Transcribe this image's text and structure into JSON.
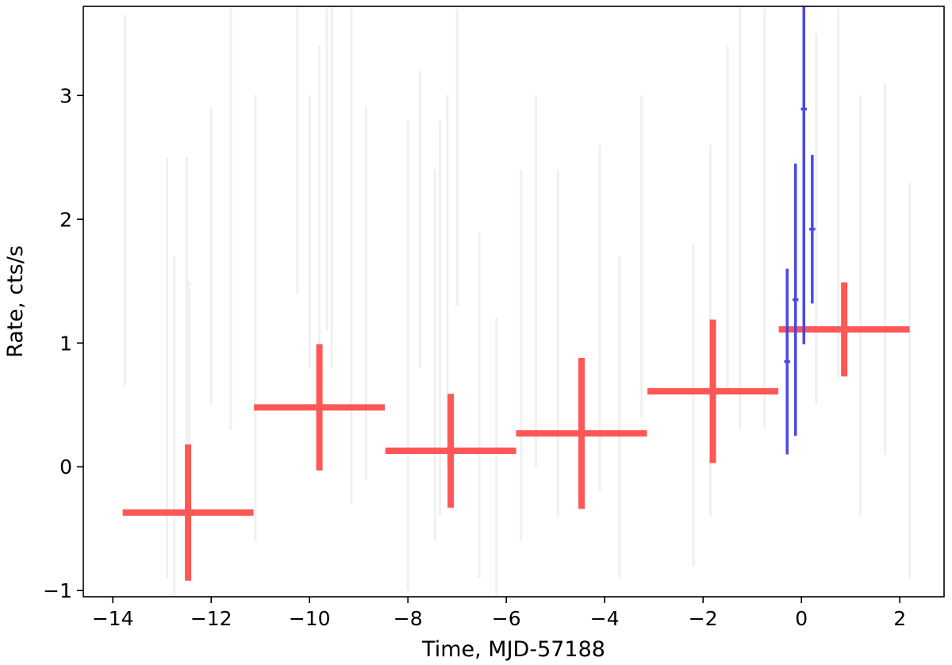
{
  "chart_data": {
    "type": "scatter",
    "xlabel": "Time, MJD-57188",
    "ylabel": "Rate, cts/s",
    "xlim": [
      -14.6,
      2.9
    ],
    "ylim": [
      -1.05,
      3.72
    ],
    "x_ticks": [
      -14,
      -12,
      -10,
      -8,
      -6,
      -4,
      -2,
      0,
      2
    ],
    "x_tick_labels": [
      "−14",
      "−12",
      "−10",
      "−8",
      "−6",
      "−4",
      "−2",
      "0",
      "2"
    ],
    "y_ticks": [
      -1,
      0,
      1,
      2,
      3
    ],
    "y_tick_labels": [
      "−1",
      "0",
      "1",
      "2",
      "3"
    ],
    "grid": false,
    "series": [
      {
        "color": "#ff4d4d",
        "points": [
          {
            "x": -12.47,
            "y": -0.37,
            "xerr": 1.33,
            "yerr": 0.55
          },
          {
            "x": -9.8,
            "y": 0.48,
            "xerr": 1.33,
            "yerr": 0.51
          },
          {
            "x": -7.13,
            "y": 0.13,
            "xerr": 1.33,
            "yerr": 0.46
          },
          {
            "x": -4.47,
            "y": 0.27,
            "xerr": 1.33,
            "yerr": 0.61
          },
          {
            "x": -1.8,
            "y": 0.61,
            "xerr": 1.33,
            "yerr": 0.58
          },
          {
            "x": 0.87,
            "y": 1.11,
            "xerr": 1.33,
            "yerr": 0.38
          }
        ]
      },
      {
        "color": "#4040e8",
        "points": [
          {
            "x": -0.29,
            "y": 0.85,
            "xerr": 0.06,
            "yerr": 0.75
          },
          {
            "x": -0.12,
            "y": 1.35,
            "xerr": 0.06,
            "yerr": 1.1
          },
          {
            "x": 0.05,
            "y": 2.89,
            "xerr": 0.06,
            "yerr": 1.9
          },
          {
            "x": 0.22,
            "y": 1.92,
            "xerr": 0.06,
            "yerr": 0.6
          }
        ]
      },
      {
        "color": "#f0f0f0",
        "points": [
          {
            "x": -13.75,
            "y": 2.15,
            "yerr": 1.5
          },
          {
            "x": -12.9,
            "y": 0.8,
            "yerr": 1.7
          },
          {
            "x": -12.75,
            "y": 0.3,
            "yerr": 1.4
          },
          {
            "x": -12.5,
            "y": 1.1,
            "yerr": 1.4
          },
          {
            "x": -12.45,
            "y": 0.5,
            "yerr": 1.0
          },
          {
            "x": -12.0,
            "y": 1.7,
            "yerr": 1.2
          },
          {
            "x": -11.6,
            "y": 2.0,
            "yerr": 1.7
          },
          {
            "x": -11.1,
            "y": 1.2,
            "yerr": 1.8
          },
          {
            "x": -10.25,
            "y": 2.6,
            "yerr": 1.2
          },
          {
            "x": -10.0,
            "y": 1.9,
            "yerr": 1.1
          },
          {
            "x": -9.8,
            "y": 2.0,
            "yerr": 1.4
          },
          {
            "x": -9.65,
            "y": 2.4,
            "yerr": 1.3
          },
          {
            "x": -9.55,
            "y": 2.3,
            "yerr": 1.5
          },
          {
            "x": -9.15,
            "y": 1.7,
            "yerr": 2.0
          },
          {
            "x": -8.85,
            "y": 1.4,
            "yerr": 1.5
          },
          {
            "x": -8.0,
            "y": 0.9,
            "yerr": 1.9
          },
          {
            "x": -7.75,
            "y": 2.0,
            "yerr": 1.2
          },
          {
            "x": -7.45,
            "y": 0.9,
            "yerr": 1.5
          },
          {
            "x": -7.35,
            "y": 1.2,
            "yerr": 1.6
          },
          {
            "x": -7.2,
            "y": 1.5,
            "yerr": 1.5
          },
          {
            "x": -7.0,
            "y": 2.5,
            "yerr": 1.2
          },
          {
            "x": -6.55,
            "y": 0.5,
            "yerr": 1.4
          },
          {
            "x": -6.2,
            "y": -0.2,
            "yerr": 1.4
          },
          {
            "x": -5.7,
            "y": 0.9,
            "yerr": 1.5
          },
          {
            "x": -5.4,
            "y": 1.5,
            "yerr": 1.5
          },
          {
            "x": -4.95,
            "y": 1.0,
            "yerr": 1.4
          },
          {
            "x": -4.1,
            "y": 1.2,
            "yerr": 1.4
          },
          {
            "x": -3.7,
            "y": 0.4,
            "yerr": 1.3
          },
          {
            "x": -3.25,
            "y": 1.7,
            "yerr": 1.3
          },
          {
            "x": -2.2,
            "y": 0.5,
            "yerr": 1.3
          },
          {
            "x": -1.85,
            "y": 1.1,
            "yerr": 1.5
          },
          {
            "x": -1.5,
            "y": 2.0,
            "yerr": 1.4
          },
          {
            "x": -1.25,
            "y": 2.1,
            "yerr": 1.8
          },
          {
            "x": -0.75,
            "y": 2.0,
            "yerr": 1.7
          },
          {
            "x": 0.3,
            "y": 2.0,
            "yerr": 1.5
          },
          {
            "x": 0.75,
            "y": 2.2,
            "yerr": 1.5
          },
          {
            "x": 1.2,
            "y": 1.3,
            "yerr": 1.7
          },
          {
            "x": 1.7,
            "y": 1.6,
            "yerr": 1.5
          },
          {
            "x": 2.2,
            "y": 0.7,
            "yerr": 1.6
          }
        ]
      }
    ]
  }
}
